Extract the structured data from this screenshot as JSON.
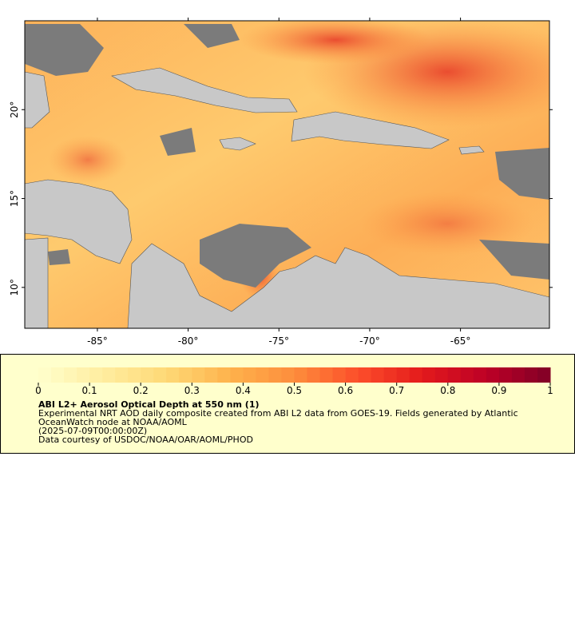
{
  "map": {
    "xlim": [
      -89,
      -60.1
    ],
    "ylim": [
      7.7,
      25
    ],
    "xticks": [
      {
        "value": -85,
        "label": "-85°"
      },
      {
        "value": -80,
        "label": "-80°"
      },
      {
        "value": -75,
        "label": "-75°"
      },
      {
        "value": -70,
        "label": "-70°"
      },
      {
        "value": -65,
        "label": "-65°"
      }
    ],
    "yticks": [
      {
        "value": 10,
        "label": "10°"
      },
      {
        "value": 15,
        "label": "15°"
      },
      {
        "value": 20,
        "label": "20°"
      }
    ]
  },
  "colorbar": {
    "lim": [
      0,
      1
    ],
    "ticks": [
      0,
      0.1,
      0.2,
      0.3,
      0.4,
      0.5,
      0.6,
      0.7,
      0.8,
      0.9,
      1
    ],
    "colors": [
      "#ffffcc",
      "#ffeda0",
      "#fed976",
      "#feb24c",
      "#fd8d3c",
      "#fc4e2a",
      "#e31a1c",
      "#bd0026",
      "#800026"
    ],
    "steps": 40
  },
  "legend": {
    "title": "ABI L2+ Aerosol Optical Depth at 550 nm (1)",
    "description": "Experimental NRT AOD daily composite created from ABI L2 data from GOES-19. Fields generated by Atlantic OceanWatch node at NOAA/AOML",
    "time": "(2025-07-09T00:00:00Z)",
    "credit": "Data courtesy of USDOC/NOAA/OAR/AOML/PHOD"
  }
}
